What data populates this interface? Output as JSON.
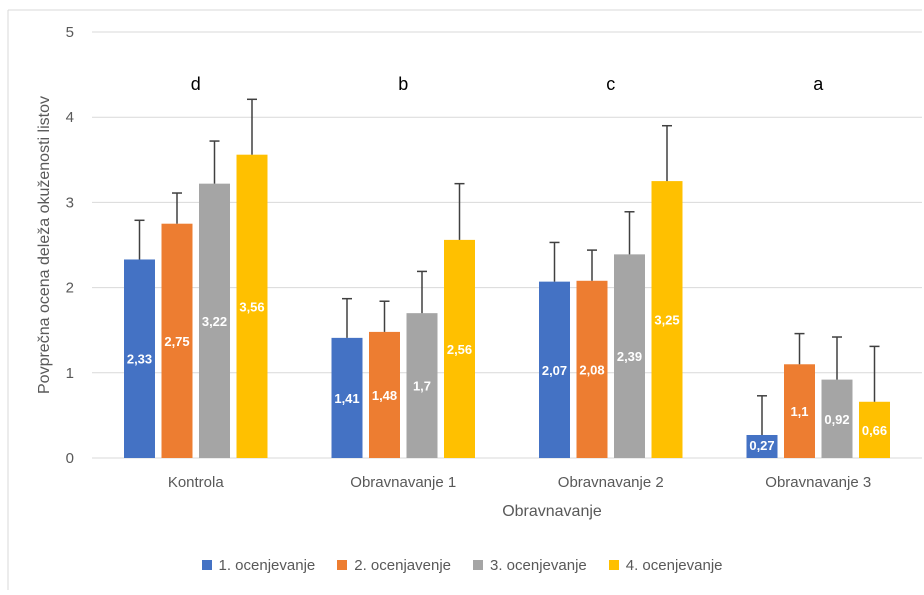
{
  "colors": {
    "series": [
      "#4472C4",
      "#ED7D31",
      "#A5A5A5",
      "#FFC000"
    ],
    "grid": "#d9d9d9",
    "text": "#595959",
    "errorbar": "#404040"
  },
  "chart_data": {
    "type": "bar",
    "title": "",
    "xlabel": "Obravnavanje",
    "ylabel": "Povprečna ocena deleža okuženosti listov",
    "ylim": [
      0,
      5
    ],
    "yticks": [
      "0",
      "1",
      "2",
      "3",
      "4",
      "5"
    ],
    "grid": true,
    "legend_position": "bottom",
    "categories": [
      "Kontrola",
      "Obravnavanje 1",
      "Obravnavanje 2",
      "Obravnavanje 3"
    ],
    "group_letters": [
      "d",
      "b",
      "c",
      "a"
    ],
    "series": [
      {
        "name": "1. ocenjevanje",
        "values": [
          2.33,
          1.41,
          2.07,
          0.27
        ],
        "labels": [
          "2,33",
          "1,41",
          "2,07",
          "0,27"
        ],
        "errors": [
          0.46,
          0.46,
          0.46,
          0.46
        ]
      },
      {
        "name": "2. ocenjavenje",
        "values": [
          2.75,
          1.48,
          2.08,
          1.1
        ],
        "labels": [
          "2,75",
          "1,48",
          "2,08",
          "1,1"
        ],
        "errors": [
          0.36,
          0.36,
          0.36,
          0.36
        ]
      },
      {
        "name": "3. ocenjevanje",
        "values": [
          3.22,
          1.7,
          2.39,
          0.92
        ],
        "labels": [
          "3,22",
          "1,7",
          "2,39",
          "0,92"
        ],
        "errors": [
          0.5,
          0.49,
          0.5,
          0.5
        ]
      },
      {
        "name": "4. ocenjevanje",
        "values": [
          3.56,
          2.56,
          3.25,
          0.66
        ],
        "labels": [
          "3,56",
          "2,56",
          "3,25",
          "0,66"
        ],
        "errors": [
          0.65,
          0.66,
          0.65,
          0.65
        ]
      }
    ]
  }
}
